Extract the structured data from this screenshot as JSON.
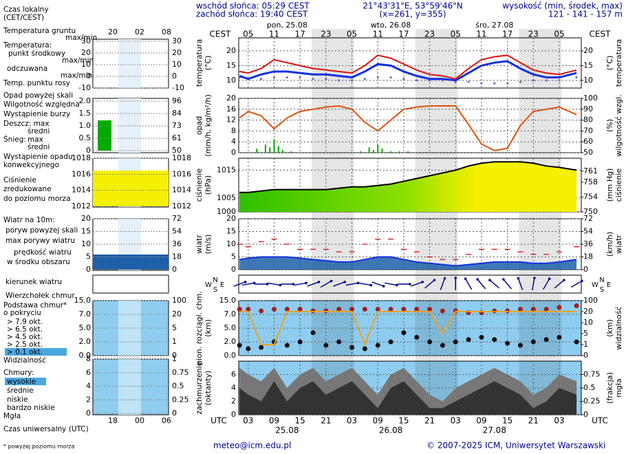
{
  "header": {
    "local_time": [
      "Czas lokalny",
      "(CET/CEST)"
    ],
    "sunrise": "wschód słońca: 05:29 CEST",
    "sunset": "zachód słońca: 19:40 CEST",
    "coords": "21°43'31\"E, 53°59'46\"N",
    "grid_point": "(x=261,  y=355)",
    "elevation_title": "wysokość (min, środek, max)",
    "elevation": "121 - 141 - 157 m"
  },
  "legend": [
    "Temperatura gruntu",
    "max/min",
    "Temperatura:",
    "punkt środkowy",
    "max/min",
    "odczuwana",
    "max/min",
    "Temp. punktu rosy",
    "Opad powyżej skali",
    "Wilgotność względna",
    "Wystąpienie burzy",
    "Deszcz: max",
    "średni",
    "Śnieg:",
    "max",
    "średni",
    "Wystąpienie opadu",
    "konwekcyjnego",
    "Ciśnienie",
    "zredukowane",
    "do poziomu morza",
    "Wiatr na 10m:",
    "poryw powyżej skali",
    "max porywy wiatru",
    "prędkość wiatru",
    "w środku obszaru",
    "kierunek wiatru",
    "Wierzchołek chmur",
    "Podstawa chmur*",
    "o pokryciu",
    "> 7.9 okt.",
    "> 6.5 okt.",
    "> 4.5 okt.",
    "> 2.5 okt.",
    "> 0.1 okt.",
    "Widzialność",
    "Chmury:",
    "wysokie",
    "średnie",
    "niskie",
    "bardzo niskie",
    "Mgła",
    "Czas uniwersalny (UTC)",
    "* powyżej poziomu morza"
  ],
  "mini": {
    "local_hours": [
      "20",
      "02",
      "08"
    ],
    "utc_hours": [
      "18",
      "00",
      "06"
    ],
    "panels": [
      {
        "left": [
          "30",
          "20",
          "10",
          "0",
          "-10"
        ],
        "right": [
          "30",
          "20",
          "10",
          "0",
          "-10"
        ]
      },
      {
        "left": [
          "2.0",
          "1.5",
          "1.0",
          "0.5",
          "0"
        ],
        "right": [
          "96",
          "84",
          "73",
          "61",
          "50"
        ]
      },
      {
        "left": [
          "1018",
          "1016",
          "1014",
          "1012"
        ],
        "right": [
          "1018",
          "1016",
          "1014",
          "1012"
        ]
      },
      {
        "left": [
          "20",
          "15",
          "10",
          "5",
          "0"
        ],
        "right": [
          "72",
          "54",
          "36",
          "18",
          "0"
        ]
      },
      {
        "left": [
          "15.0",
          "7.0",
          "5.0",
          "2.0",
          "0.0"
        ],
        "right": [
          "100",
          "20",
          "5",
          "1",
          "0"
        ]
      },
      {
        "left": [
          "8",
          "6",
          "4",
          "2",
          "0"
        ],
        "right": [
          "1",
          "0.75",
          "0.5",
          "0.25",
          "0"
        ]
      }
    ]
  },
  "main": {
    "tz_top": "CEST",
    "tz_bottom": "UTC",
    "local_hours": [
      "05",
      "11",
      "17",
      "23",
      "05",
      "11",
      "17",
      "23",
      "05",
      "11",
      "17",
      "23",
      "05"
    ],
    "utc_hours": [
      "03",
      "09",
      "15",
      "21",
      "03",
      "09",
      "15",
      "21",
      "03",
      "09",
      "15",
      "21",
      "03"
    ],
    "days_top": [
      "pon, 25.08",
      "wto, 26.08",
      "śro, 27.08"
    ],
    "days_bottom": [
      "25.08",
      "26.08",
      "27.08"
    ],
    "compass": [
      "N",
      "W",
      "E",
      "S"
    ],
    "panels": [
      {
        "left_title": [
          "temperatura",
          "(°C)"
        ],
        "right_title": [
          "(°C)",
          "temperatura"
        ],
        "ylim": [
          7.4,
          24.4
        ],
        "yticks": [
          10,
          15,
          20
        ],
        "y2lim": [
          7.4,
          24.4
        ],
        "y2ticks": [
          10,
          15,
          20
        ]
      },
      {
        "left_title": [
          "opad",
          "(mm/h, kg/m²/h)"
        ],
        "right_title": [
          "(%)",
          "wilgotność wzgl."
        ],
        "ylim": [
          0,
          20
        ],
        "yticks": [
          0,
          4,
          8,
          12,
          16,
          20
        ],
        "y2lim": [
          50,
          100
        ],
        "y2ticks": [
          50,
          60,
          70,
          80,
          90,
          100
        ]
      },
      {
        "left_title": [
          "ciśnienie",
          "(hPa)"
        ],
        "right_title": [
          "(mm Hg)",
          "ciśnienie"
        ],
        "ylim": [
          1000,
          1019.3
        ],
        "yticks": [
          1000,
          1005,
          1015
        ],
        "y2lim": [
          750,
          764.5
        ],
        "y2ticks": [
          750,
          754,
          758,
          761
        ]
      },
      {
        "left_title": [
          "wiatr",
          "(m/s)"
        ],
        "right_title": [
          "(km/h)",
          "wiatr"
        ],
        "ylim": [
          0,
          20
        ],
        "yticks": [
          0,
          5,
          10,
          15,
          20
        ],
        "y2lim": [
          0,
          72
        ],
        "y2ticks": [
          0,
          18,
          36,
          54,
          72
        ]
      },
      {
        "left_title": [
          "pion. rozciągł. chm.",
          "(km)"
        ],
        "right_title": [
          "(km)",
          "widzialność"
        ],
        "yticks": [
          {
            "value": 0,
            "label": "0.0"
          },
          {
            "value": 2,
            "label": "2.0"
          },
          {
            "value": 5,
            "label": "5.0"
          },
          {
            "value": 7,
            "label": "7.0"
          },
          {
            "value": 15,
            "label": "15.0"
          }
        ],
        "y2ticks": [
          0,
          1,
          5,
          10,
          20,
          100
        ]
      },
      {
        "left_title": [
          "zachmurzenie",
          "(oktanty)"
        ],
        "right_title": [
          "(frakcja)",
          "mgła"
        ],
        "ylim": [
          0,
          8
        ],
        "yticks": [
          0,
          2,
          4,
          6
        ],
        "y2lim": [
          0,
          1
        ],
        "y2ticks": [
          0,
          0.25,
          0.5,
          0.75
        ]
      }
    ]
  },
  "series": {
    "hours": [
      1,
      3,
      6,
      9,
      12,
      15,
      18,
      21,
      24,
      27,
      30,
      33,
      36,
      39,
      42,
      45,
      48,
      51,
      54,
      57,
      60,
      63,
      66,
      69,
      72,
      75,
      79
    ],
    "temperature": [
      13,
      12.5,
      14,
      17,
      16,
      15,
      14,
      13.5,
      13,
      12.5,
      15,
      18.5,
      17.5,
      15.5,
      13.5,
      12,
      11.5,
      10.5,
      14,
      17,
      18,
      18.5,
      16,
      13.5,
      12.5,
      12,
      13.5
    ],
    "feels_like": [
      11.5,
      10.5,
      12,
      13,
      13,
      12.5,
      12,
      12,
      11.5,
      11,
      13,
      15.5,
      15,
      13,
      11.5,
      10.5,
      10.5,
      10,
      12.5,
      15,
      16,
      16.5,
      14,
      12,
      11,
      11,
      12.5
    ],
    "dew_point": [
      11,
      10.5,
      10.5,
      11,
      11,
      11,
      10.5,
      10.5,
      10,
      10,
      10.5,
      11,
      11,
      10.5,
      10,
      10,
      10,
      9.5,
      9.5,
      9,
      9,
      9,
      9.5,
      10,
      10,
      10,
      11
    ],
    "humidity": [
      82,
      88,
      84,
      72,
      82,
      88,
      90,
      92,
      93,
      90,
      78,
      70,
      80,
      90,
      92,
      93,
      93,
      93,
      76,
      58,
      52,
      54,
      75,
      88,
      90,
      92,
      85
    ],
    "precip_hours": [
      5,
      7,
      8,
      9,
      10,
      11,
      13,
      29,
      31,
      32,
      33,
      34,
      36,
      38,
      40,
      44
    ],
    "precip": [
      1.5,
      3,
      2,
      5,
      2.5,
      1,
      0.5,
      0.5,
      2,
      1,
      3,
      1.5,
      0.5,
      0.5,
      0.5,
      0.3
    ],
    "pressure": [
      1007,
      1007,
      1007.5,
      1008,
      1008,
      1008,
      1008,
      1008,
      1008.5,
      1009,
      1009,
      1009.5,
      1010,
      1011,
      1012,
      1013,
      1014,
      1015,
      1016.5,
      1017.5,
      1018,
      1018,
      1018,
      1017.5,
      1016.5,
      1016,
      1015
    ],
    "wind_speed": [
      4,
      4.5,
      5,
      5,
      5,
      4.5,
      4,
      3.5,
      3,
      3,
      4,
      5,
      5,
      4,
      3,
      2.5,
      2,
      1.5,
      2,
      2.5,
      3,
      3,
      3,
      2.5,
      2.5,
      3,
      4
    ],
    "wind_gust": [
      10,
      9,
      11,
      12,
      10,
      8,
      8,
      8,
      7,
      7,
      10,
      12,
      12,
      8,
      7,
      5,
      4,
      4,
      6,
      8,
      8,
      8,
      7,
      6,
      6,
      7,
      9
    ],
    "wind_dir": [
      250,
      260,
      270,
      280,
      270,
      260,
      250,
      240,
      250,
      260,
      280,
      290,
      280,
      270,
      250,
      230,
      200,
      180,
      150,
      140,
      130,
      140,
      160,
      190,
      210,
      230,
      240
    ],
    "cloud_top": [
      10,
      10,
      9,
      10,
      10,
      10,
      9,
      9,
      10,
      10,
      10,
      10,
      10,
      10,
      10,
      10,
      9,
      9,
      8,
      8,
      9,
      9,
      10,
      10,
      10,
      11,
      12
    ],
    "cloud_base": [
      1.5,
      1,
      1.2,
      2,
      1.5,
      2,
      4,
      1.5,
      2,
      1.2,
      1,
      1.5,
      2,
      4,
      3,
      2,
      1.5,
      2,
      2.5,
      3,
      2.5,
      1.8,
      1.5,
      2,
      2.5,
      3,
      2
    ],
    "visibility": [
      20,
      20,
      1,
      1,
      20,
      20,
      20,
      20,
      20,
      20,
      1,
      20,
      20,
      20,
      20,
      20,
      5,
      20,
      20,
      20,
      20,
      20,
      20,
      20,
      20,
      20,
      20
    ],
    "cloud_cover": [
      7,
      6,
      5,
      7,
      4,
      6,
      7,
      5,
      6,
      7,
      5,
      3,
      6,
      7,
      5,
      3,
      2,
      4,
      5,
      6,
      7,
      6,
      5,
      3,
      4,
      6,
      5
    ],
    "low_cloud": [
      4,
      3,
      2,
      5,
      2,
      4,
      5,
      3,
      4,
      5,
      3,
      1,
      4,
      5,
      3,
      1,
      1,
      2,
      3,
      4,
      5,
      4,
      3,
      1,
      2,
      4,
      3
    ]
  },
  "footer": {
    "email": "meteo@icm.edu.pl",
    "copyright": "© 2007-2025 ICM, Uniwersytet Warszawski"
  }
}
